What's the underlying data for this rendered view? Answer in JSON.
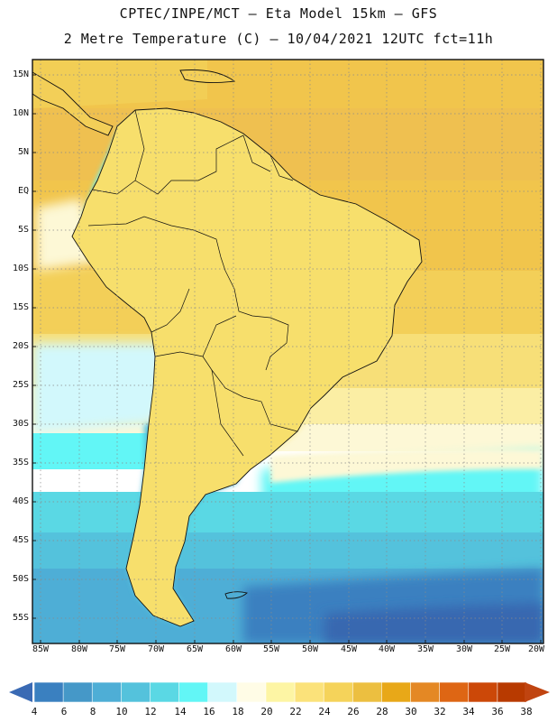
{
  "title_line1": "CPTEC/INPE/MCT –  Eta Model 15km – GFS",
  "title_line2": "2 Metre Temperature (C) – 10/04/2021 12UTC fct=11h",
  "map": {
    "region": "South America",
    "lon_range": [
      -85,
      -20
    ],
    "lat_range": [
      -58,
      17
    ],
    "lat_labels": [
      "15N",
      "10N",
      "5N",
      "EQ",
      "5S",
      "10S",
      "15S",
      "20S",
      "25S",
      "30S",
      "35S",
      "40S",
      "45S",
      "50S",
      "55S"
    ],
    "lon_labels": [
      "85W",
      "80W",
      "75W",
      "70W",
      "65W",
      "60W",
      "55W",
      "50W",
      "45W",
      "40W",
      "35W",
      "30W",
      "25W",
      "20W"
    ],
    "gridlines": "dotted"
  },
  "colorbar": {
    "labels": [
      "4",
      "6",
      "8",
      "10",
      "12",
      "14",
      "16",
      "18",
      "20",
      "22",
      "24",
      "26",
      "28",
      "30",
      "32",
      "34",
      "36",
      "38"
    ],
    "colors": [
      "#3868b0",
      "#3a80c0",
      "#4598c8",
      "#4eaed6",
      "#54c2dc",
      "#5ad8e4",
      "#62f6f6",
      "#d2f8fc",
      "#fffce6",
      "#fdf5a4",
      "#fbe27a",
      "#f5d35a",
      "#ecbf40",
      "#e8a818",
      "#e48824",
      "#de6614",
      "#cc4808",
      "#b83a00"
    ],
    "low_arrow_color": "#3a6ab4",
    "high_arrow_color": "#c04410"
  }
}
